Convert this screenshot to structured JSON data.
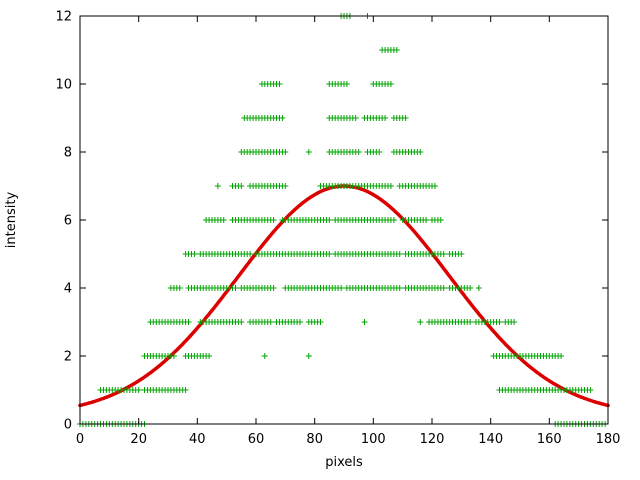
{
  "chart_data": {
    "type": "scatter",
    "title": "",
    "xlabel": "pixels",
    "ylabel": "intensity",
    "xlim": [
      0,
      180
    ],
    "ylim": [
      0,
      12
    ],
    "xticks": [
      0,
      20,
      40,
      60,
      80,
      100,
      120,
      140,
      160,
      180
    ],
    "yticks": [
      0,
      2,
      4,
      6,
      8,
      10,
      12
    ],
    "grid": false,
    "legend": "none",
    "series": [
      {
        "name": "measured-intensity-points",
        "marker": "plus",
        "color": "#00a400",
        "runs": [
          {
            "y": 12,
            "segments": [
              [
                89,
                92
              ]
            ],
            "singles": [
              98
            ]
          },
          {
            "y": 11,
            "segments": [
              [
                103,
                108
              ]
            ],
            "singles": []
          },
          {
            "y": 10,
            "segments": [
              [
                62,
                68
              ],
              [
                85,
                91
              ],
              [
                100,
                106
              ]
            ],
            "singles": []
          },
          {
            "y": 9,
            "segments": [
              [
                56,
                69
              ],
              [
                85,
                94
              ],
              [
                97,
                104
              ],
              [
                107,
                111
              ]
            ],
            "singles": []
          },
          {
            "y": 8,
            "segments": [
              [
                55,
                70
              ],
              [
                85,
                95
              ],
              [
                98,
                102
              ],
              [
                107,
                116
              ]
            ],
            "singles": [
              78
            ]
          },
          {
            "y": 7,
            "segments": [
              [
                52,
                55
              ],
              [
                58,
                70
              ],
              [
                82,
                106
              ],
              [
                109,
                121
              ]
            ],
            "singles": [
              47
            ]
          },
          {
            "y": 6,
            "segments": [
              [
                43,
                49
              ],
              [
                52,
                66
              ],
              [
                69,
                85
              ],
              [
                87,
                107
              ],
              [
                110,
                118
              ],
              [
                120,
                123
              ]
            ],
            "singles": []
          },
          {
            "y": 5,
            "segments": [
              [
                36,
                39
              ],
              [
                41,
                58
              ],
              [
                60,
                85
              ],
              [
                87,
                109
              ],
              [
                111,
                124
              ],
              [
                126,
                130
              ]
            ],
            "singles": []
          },
          {
            "y": 4,
            "segments": [
              [
                31,
                34
              ],
              [
                37,
                53
              ],
              [
                55,
                66
              ],
              [
                70,
                89
              ],
              [
                91,
                109
              ],
              [
                111,
                124
              ],
              [
                126,
                133
              ]
            ],
            "singles": [
              136
            ]
          },
          {
            "y": 3,
            "segments": [
              [
                24,
                37
              ],
              [
                41,
                55
              ],
              [
                58,
                65
              ],
              [
                67,
                75
              ],
              [
                78,
                82
              ],
              [
                119,
                133
              ],
              [
                135,
                143
              ],
              [
                145,
                148
              ]
            ],
            "singles": [
              97,
              116
            ]
          },
          {
            "y": 2,
            "segments": [
              [
                22,
                32
              ],
              [
                36,
                44
              ],
              [
                141,
                157
              ],
              [
                158,
                164
              ]
            ],
            "singles": [
              63,
              78
            ]
          },
          {
            "y": 1,
            "segments": [
              [
                7,
                20
              ],
              [
                22,
                36
              ],
              [
                143,
                158
              ],
              [
                159,
                174
              ]
            ],
            "singles": []
          },
          {
            "y": 0,
            "segments": [
              [
                0,
                22
              ],
              [
                162,
                179
              ]
            ],
            "singles": []
          }
        ]
      },
      {
        "name": "gaussian-fit-curve",
        "curve": "gaussian",
        "color": "#dd0000",
        "amplitude": 6.75,
        "center": 90,
        "sigma": 36,
        "offset": 0.25
      }
    ]
  }
}
